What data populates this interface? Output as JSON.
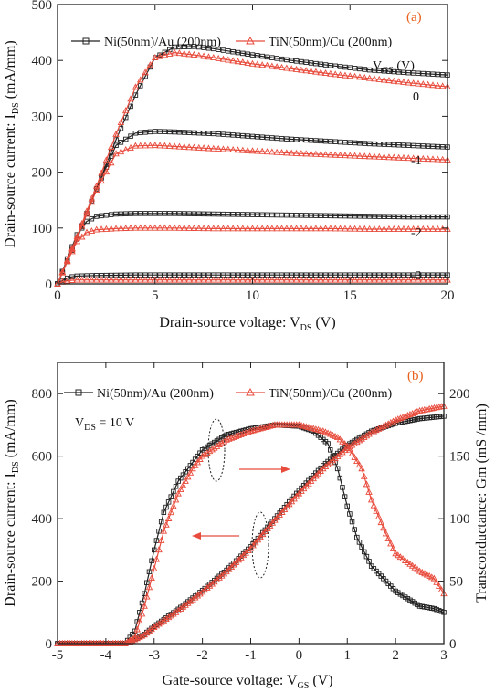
{
  "chart_data": [
    {
      "panel": "(a)",
      "type": "line",
      "xlabel": "Drain-source voltage: V",
      "xlabel_sub": "DS",
      "xlabel_unit": " (V)",
      "ylabel": "Drain-source current: I",
      "ylabel_sub": "DS",
      "ylabel_unit": " (mA/mm)",
      "xlim": [
        0,
        20
      ],
      "ylim": [
        0,
        500
      ],
      "xticks": [
        0,
        5,
        10,
        15,
        20
      ],
      "yticks": [
        0,
        100,
        200,
        300,
        400,
        500
      ],
      "grid": false,
      "legend_position": "top",
      "gate_header": "V",
      "gate_header_sub": "GS",
      "gate_header_unit": " (V)",
      "series": [
        {
          "name": "Ni(50nm)/Au (200nm)",
          "color": "#222222",
          "marker": "square",
          "curves": [
            {
              "vgs": "0",
              "x": [
                0,
                1,
                2,
                3,
                4,
                5,
                6,
                7,
                8,
                10,
                12,
                14,
                16,
                18,
                20
              ],
              "y": [
                0,
                82,
                170,
                258,
                338,
                405,
                424,
                425,
                421,
                410,
                400,
                391,
                383,
                378,
                374
              ]
            },
            {
              "vgs": "-1",
              "x": [
                0,
                1,
                2,
                3,
                4,
                5,
                6,
                8,
                10,
                12,
                14,
                16,
                18,
                20
              ],
              "y": [
                0,
                80,
                170,
                248,
                270,
                273,
                272,
                269,
                264,
                259,
                255,
                251,
                248,
                245
              ]
            },
            {
              "vgs": "-2",
              "x": [
                0,
                0.5,
                1,
                1.5,
                2,
                3,
                4,
                6,
                8,
                10,
                12,
                14,
                16,
                18,
                20
              ],
              "y": [
                0,
                45,
                88,
                112,
                121,
                125,
                126,
                126,
                125,
                124,
                123,
                122,
                121,
                120,
                120
              ]
            },
            {
              "vgs": "-3",
              "x": [
                0,
                0.3,
                0.6,
                1,
                2,
                4,
                8,
                12,
                16,
                20
              ],
              "y": [
                0,
                7,
                12,
                14,
                15,
                16,
                16,
                16,
                16,
                16
              ]
            }
          ]
        },
        {
          "name": "TiN(50nm)/Cu (200nm)",
          "color": "#e84c3d",
          "marker": "triangle",
          "curves": [
            {
              "vgs": "0",
              "x": [
                0,
                1,
                2,
                3,
                4,
                5,
                6,
                7,
                8,
                10,
                12,
                14,
                16,
                18,
                20
              ],
              "y": [
                0,
                85,
                175,
                268,
                352,
                405,
                414,
                410,
                405,
                394,
                385,
                376,
                368,
                360,
                353
              ]
            },
            {
              "vgs": "-1",
              "x": [
                0,
                1,
                2,
                3,
                4,
                5,
                6,
                8,
                10,
                12,
                14,
                16,
                18,
                20
              ],
              "y": [
                0,
                82,
                168,
                233,
                247,
                248,
                246,
                242,
                238,
                234,
                231,
                228,
                225,
                222
              ]
            },
            {
              "vgs": "-2",
              "x": [
                0,
                0.5,
                1,
                1.5,
                2,
                3,
                4,
                6,
                8,
                10,
                12,
                14,
                16,
                18,
                20
              ],
              "y": [
                0,
                40,
                76,
                92,
                97,
                99,
                100,
                100,
                99,
                99,
                99,
                99,
                98,
                98,
                98
              ]
            },
            {
              "vgs": "-3",
              "x": [
                0,
                0.3,
                0.6,
                1,
                2,
                4,
                8,
                12,
                16,
                20
              ],
              "y": [
                0,
                4,
                6,
                7,
                7,
                7,
                7,
                7,
                7,
                7
              ]
            }
          ]
        }
      ]
    },
    {
      "panel": "(b)",
      "type": "line",
      "xlabel": "Gate-source voltage: V",
      "xlabel_sub": "GS",
      "xlabel_unit": " (V)",
      "ylabel": "Drain-source current: I",
      "ylabel_sub": "DS",
      "ylabel_unit": " (mA/mm)",
      "y2label": "Transconductance: Gm (mS /mm)",
      "xlim": [
        -5,
        3
      ],
      "ylim": [
        0,
        900
      ],
      "y2lim": [
        0,
        225
      ],
      "xticks": [
        -5,
        -4,
        -3,
        -2,
        -1,
        0,
        1,
        2,
        3
      ],
      "yticks": [
        0,
        200,
        400,
        600,
        800
      ],
      "y2ticks": [
        0,
        50,
        100,
        150,
        200
      ],
      "grid": false,
      "legend_position": "top",
      "annotation": "V",
      "annotation_sub": "DS",
      "annotation_rest": " = 10 V",
      "series": [
        {
          "name": "Ni(50nm)/Au (200nm)",
          "color": "#222222",
          "marker": "square",
          "ids": {
            "x": [
              -5,
              -3.9,
              -3.6,
              -3.5,
              -3.2,
              -3,
              -2.5,
              -2,
              -1.5,
              -1,
              -0.5,
              0,
              0.5,
              1,
              1.5,
              2,
              2.5,
              3
            ],
            "y": [
              0,
              0,
              0,
              5,
              30,
              55,
              110,
              170,
              235,
              310,
              400,
              490,
              570,
              635,
              680,
              705,
              720,
              728
            ]
          },
          "gm": {
            "x": [
              -5,
              -3.9,
              -3.6,
              -3.4,
              -3.2,
              -3,
              -2.8,
              -2.5,
              -2.2,
              -2,
              -1.5,
              -1,
              -0.5,
              0,
              0.3,
              0.6,
              0.8,
              1,
              1.2,
              1.5,
              2,
              2.5,
              2.8,
              3
            ],
            "y": [
              0,
              0,
              0,
              10,
              40,
              75,
              105,
              130,
              145,
              155,
              167,
              172,
              175,
              174,
              170,
              160,
              140,
              110,
              85,
              62,
              42,
              30,
              28,
              25
            ]
          }
        },
        {
          "name": "TiN(50nm)/Cu (200nm)",
          "color": "#e84c3d",
          "marker": "triangle",
          "ids": {
            "x": [
              -5,
              -3.9,
              -3.6,
              -3.5,
              -3.2,
              -3,
              -2.5,
              -2,
              -1.5,
              -1,
              -0.5,
              0,
              0.5,
              1,
              1.5,
              2,
              2.5,
              3
            ],
            "y": [
              0,
              0,
              0,
              5,
              28,
              52,
              105,
              165,
              230,
              305,
              395,
              480,
              560,
              625,
              675,
              715,
              745,
              760
            ]
          },
          "gm": {
            "x": [
              -5,
              -3.9,
              -3.6,
              -3.4,
              -3.2,
              -3,
              -2.8,
              -2.5,
              -2.2,
              -2,
              -1.5,
              -1,
              -0.5,
              0,
              0.5,
              0.8,
              1,
              1.3,
              1.5,
              1.8,
              2,
              2.5,
              2.8,
              3
            ],
            "y": [
              0,
              0,
              0,
              5,
              30,
              60,
              90,
              120,
              140,
              150,
              163,
              170,
              175,
              175,
              170,
              165,
              158,
              140,
              115,
              88,
              72,
              58,
              52,
              40
            ]
          }
        }
      ]
    }
  ]
}
